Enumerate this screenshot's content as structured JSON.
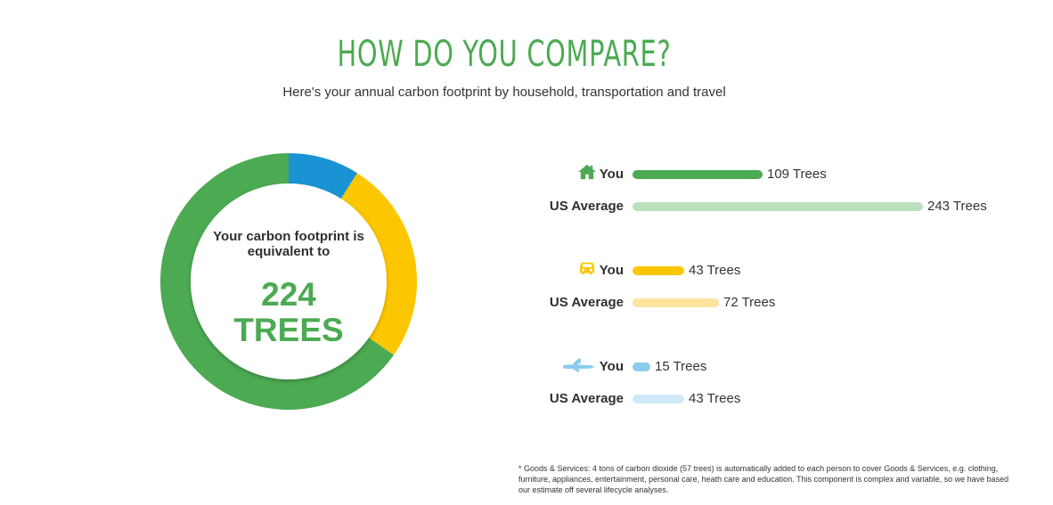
{
  "header": {
    "title": "HOW DO YOU COMPARE?",
    "subtitle": "Here's your annual carbon footprint by household, transportation and travel"
  },
  "donut": {
    "caption": "Your carbon footprint is equivalent to",
    "value": "224",
    "unit": "TREES"
  },
  "colors": {
    "accent_green": "#4caa52",
    "household": "#4caa52",
    "household_avg": "#bce0bd",
    "transportation": "#fcc700",
    "transportation_avg": "#fde49f",
    "travel": "#1a93d4",
    "travel_you": "#89ccee",
    "travel_avg": "#cfe9f7",
    "text": "#333333"
  },
  "chart_data": [
    {
      "type": "pie",
      "categories": [
        "Travel",
        "Transportation",
        "Household"
      ],
      "values": [
        15,
        43,
        109
      ],
      "colors": [
        "#1a93d4",
        "#fcc700",
        "#4caa52"
      ],
      "donut": true
    },
    {
      "type": "bar",
      "orientation": "horizontal",
      "xlim": [
        0,
        243
      ],
      "rows": [
        {
          "group": "household",
          "icon": "house-icon",
          "label": "You",
          "value": 109,
          "value_label": "109 Trees",
          "color": "#4caa52"
        },
        {
          "group": "household",
          "icon": "",
          "label": "US Average",
          "value": 243,
          "value_label": "243 Trees",
          "color": "#bce0bd"
        },
        {
          "group": "transportation",
          "icon": "car-icon",
          "label": "You",
          "value": 43,
          "value_label": "43 Trees",
          "color": "#fcc700"
        },
        {
          "group": "transportation",
          "icon": "",
          "label": "US Average",
          "value": 72,
          "value_label": "72 Trees",
          "color": "#fde49f"
        },
        {
          "group": "travel",
          "icon": "airplane-icon",
          "label": "You",
          "value": 15,
          "value_label": "15 Trees",
          "color": "#89ccee"
        },
        {
          "group": "travel",
          "icon": "",
          "label": "US Average",
          "value": 43,
          "value_label": "43 Trees",
          "color": "#cfe9f7"
        }
      ]
    }
  ],
  "footnote": "* Goods & Services: 4 tons of carbon dioxide (57 trees) is automatically added to each person to cover Goods & Services, e.g. clothing, furniture, appliances, entertainment, personal care, heath care and education. This component is complex and variable, so we have based our estimate off several lifecycle analyses."
}
